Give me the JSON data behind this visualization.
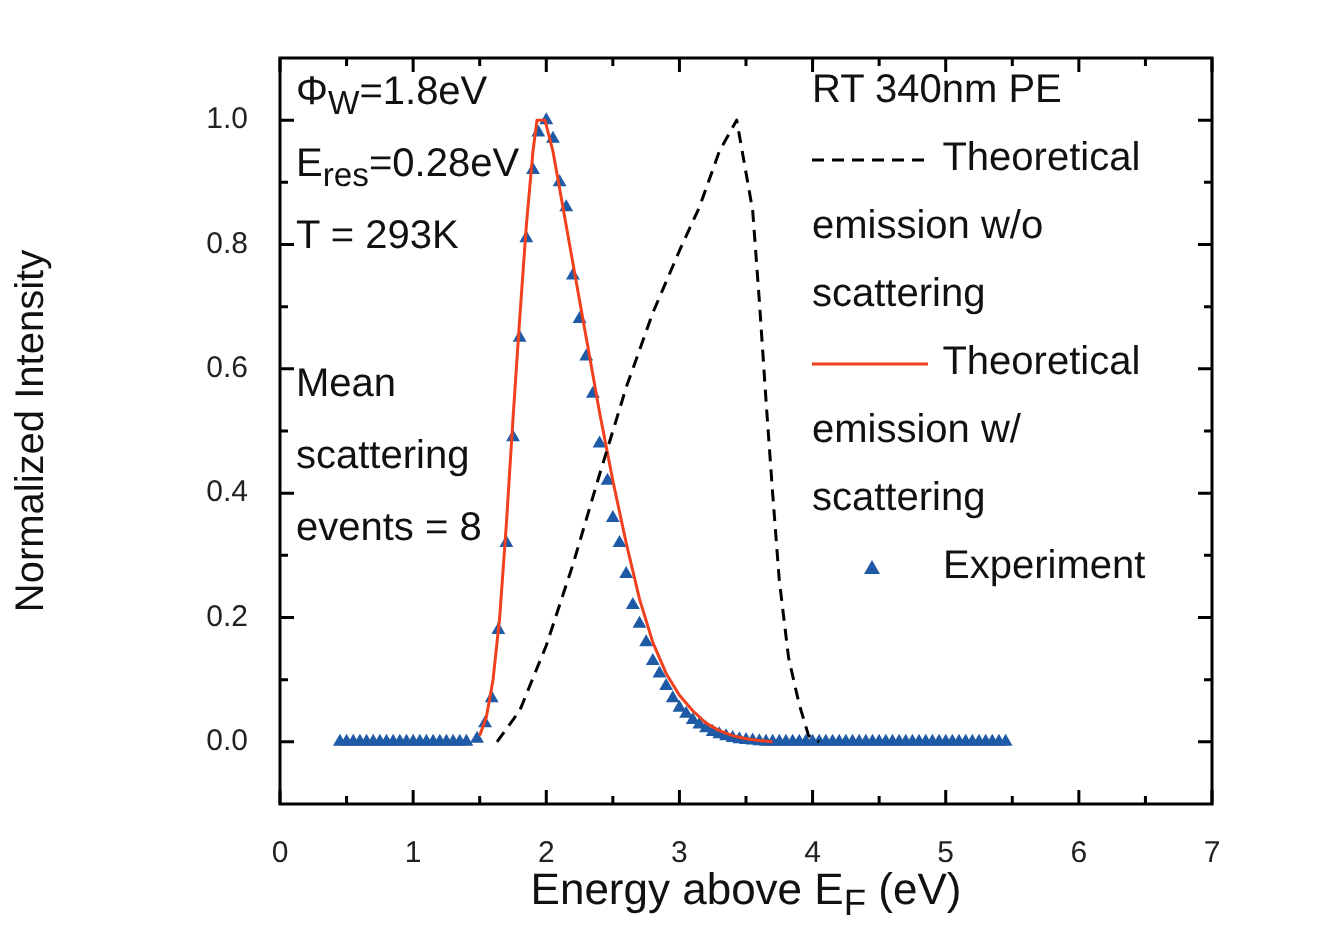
{
  "chart_data": {
    "type": "line",
    "xlabel": "Energy above E$_{F}$ (eV)",
    "ylabel": "Normalized Intensity",
    "xlim": [
      0,
      7
    ],
    "ylim": [
      -0.1,
      1.1
    ],
    "xticks": [
      0,
      {
        "value": 0.5,
        "label": null
      },
      1,
      {
        "value": 1.5,
        "label": null
      },
      2,
      {
        "value": 2.5,
        "label": null
      },
      3,
      {
        "value": 3.5,
        "label": null
      },
      4,
      {
        "value": 4.5,
        "label": null
      },
      5,
      {
        "value": 5.5,
        "label": null
      },
      6,
      {
        "value": 6.5,
        "label": null
      },
      7
    ],
    "yticks": [
      {
        "value": 0,
        "label": "0.0"
      },
      {
        "value": 0.1,
        "label": null
      },
      {
        "value": 0.2,
        "label": "0.2"
      },
      {
        "value": 0.3,
        "label": null
      },
      {
        "value": 0.4,
        "label": "0.4"
      },
      {
        "value": 0.5,
        "label": null
      },
      {
        "value": 0.6,
        "label": "0.6"
      },
      {
        "value": 0.7,
        "label": null
      },
      {
        "value": 0.8,
        "label": "0.8"
      },
      {
        "value": 0.9,
        "label": null
      },
      {
        "value": 1.0,
        "label": "1.0"
      }
    ],
    "legend": "top right",
    "legend_title": "RT 340nm PE",
    "annotations": [
      "Φ$_{W}$=1.8eV",
      "E$_{res}$=0.28eV",
      "T = 293K",
      "Mean scattering events = 8"
    ],
    "series": [
      {
        "name": "Theoretical emission w/o scattering",
        "type": "line",
        "line_style": "dashed",
        "marker": "none",
        "color": "#000000",
        "x": [
          1.63,
          1.8,
          2.0,
          2.2,
          2.4,
          2.6,
          2.8,
          3.0,
          3.15,
          3.3,
          3.43,
          3.55,
          3.6,
          3.65,
          3.7,
          3.75,
          3.82,
          3.9,
          3.97,
          4.05
        ],
        "values": [
          0,
          0.05,
          0.155,
          0.285,
          0.43,
          0.57,
          0.69,
          0.79,
          0.86,
          0.95,
          1.0,
          0.855,
          0.71,
          0.55,
          0.4,
          0.26,
          0.135,
          0.06,
          0.01,
          0
        ]
      },
      {
        "name": "Theoretical emission w/ scattering",
        "type": "line",
        "line_style": "solid",
        "marker": "none",
        "color": "#f0401e",
        "x": [
          1.5,
          1.55,
          1.6,
          1.65,
          1.7,
          1.75,
          1.8,
          1.85,
          1.9,
          1.93,
          1.99,
          2.05,
          2.1,
          2.2,
          2.3,
          2.4,
          2.5,
          2.6,
          2.7,
          2.8,
          2.9,
          3.0,
          3.1,
          3.2,
          3.3,
          3.4,
          3.5,
          3.6,
          3.7
        ],
        "values": [
          0.01,
          0.04,
          0.1,
          0.2,
          0.35,
          0.52,
          0.68,
          0.83,
          0.95,
          1.0,
          1.0,
          0.95,
          0.89,
          0.77,
          0.65,
          0.53,
          0.42,
          0.32,
          0.23,
          0.16,
          0.11,
          0.075,
          0.05,
          0.03,
          0.018,
          0.01,
          0.005,
          0.002,
          0
        ]
      },
      {
        "name": "Experiment",
        "type": "scatter",
        "marker": "triangle",
        "color": "#1f5aa6",
        "x": [
          0.45,
          0.5,
          0.55,
          0.6,
          0.65,
          0.7,
          0.75,
          0.8,
          0.85,
          0.9,
          0.95,
          1.0,
          1.05,
          1.1,
          1.15,
          1.2,
          1.25,
          1.3,
          1.35,
          1.4,
          1.48,
          1.54,
          1.59,
          1.64,
          1.7,
          1.75,
          1.8,
          1.85,
          1.9,
          1.94,
          2.0,
          2.05,
          2.1,
          2.15,
          2.2,
          2.25,
          2.3,
          2.35,
          2.4,
          2.46,
          2.5,
          2.55,
          2.6,
          2.65,
          2.7,
          2.75,
          2.8,
          2.85,
          2.9,
          2.95,
          3.0,
          3.05,
          3.1,
          3.15,
          3.2,
          3.25,
          3.3,
          3.35,
          3.4,
          3.45,
          3.5,
          3.55,
          3.6,
          3.65,
          3.7,
          3.75,
          3.8,
          3.85,
          3.9,
          3.95,
          4.0,
          4.05,
          4.1,
          4.15,
          4.2,
          4.25,
          4.3,
          4.35,
          4.4,
          4.45,
          4.5,
          4.55,
          4.6,
          4.65,
          4.7,
          4.75,
          4.8,
          4.85,
          4.9,
          4.95,
          5.0,
          5.05,
          5.1,
          5.15,
          5.2,
          5.25,
          5.3,
          5.35,
          5.4,
          5.45
        ],
        "values": [
          0,
          0,
          0,
          0,
          0,
          0,
          0,
          0,
          0,
          0,
          0,
          0,
          0,
          0,
          0,
          0,
          0,
          0,
          0,
          0,
          0.005,
          0.03,
          0.07,
          0.18,
          0.32,
          0.49,
          0.65,
          0.81,
          0.92,
          0.98,
          1.0,
          0.97,
          0.9,
          0.86,
          0.75,
          0.68,
          0.62,
          0.56,
          0.48,
          0.42,
          0.36,
          0.32,
          0.27,
          0.22,
          0.19,
          0.16,
          0.13,
          0.11,
          0.09,
          0.07,
          0.055,
          0.045,
          0.035,
          0.028,
          0.022,
          0.016,
          0.012,
          0.009,
          0.006,
          0.004,
          0.003,
          0.002,
          0.001,
          0,
          0,
          0,
          0,
          0,
          0,
          0,
          0,
          0,
          0,
          0,
          0,
          0,
          0,
          0,
          0,
          0,
          0,
          0,
          0,
          0,
          0,
          0,
          0,
          0,
          0,
          0,
          0,
          0,
          0,
          0,
          0,
          0,
          0,
          0,
          0,
          0
        ]
      }
    ]
  }
}
